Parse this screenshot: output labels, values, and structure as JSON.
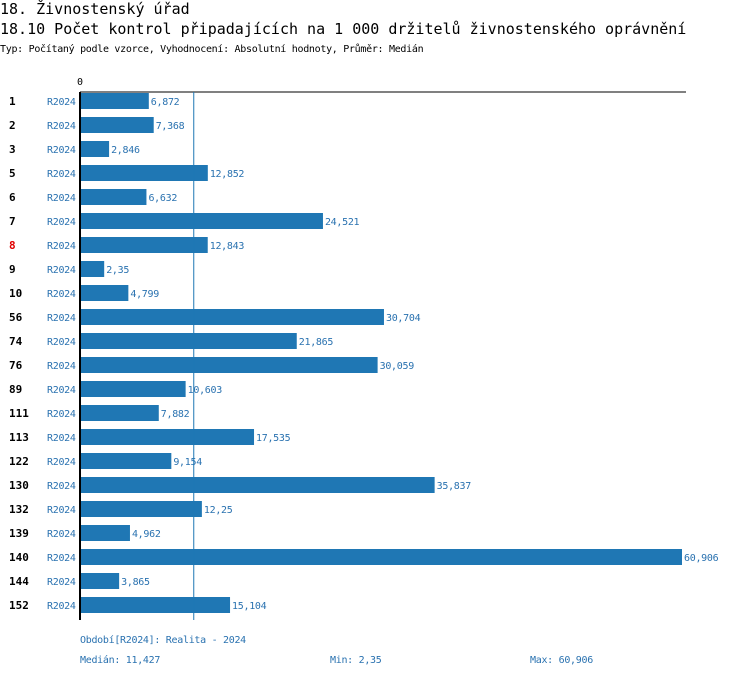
{
  "header": {
    "section": "18. Živnostenský úřad",
    "title": "18.10 Počet kontrol připadajících na 1 000 držitelů živnostenského oprávnění",
    "type_line": "Typ: Počítaný podle vzorce, Vyhodnocení: Absolutní hodnoty, Průměr: Medián"
  },
  "chart_data": {
    "type": "bar",
    "orientation": "horizontal",
    "axis_zero_label": "0",
    "series_label": "R2024",
    "categories": [
      "1",
      "2",
      "3",
      "5",
      "6",
      "7",
      "8",
      "9",
      "10",
      "56",
      "74",
      "76",
      "89",
      "111",
      "113",
      "122",
      "130",
      "132",
      "139",
      "140",
      "144",
      "152"
    ],
    "highlighted": "8",
    "values": [
      6.872,
      7.368,
      2.846,
      12.852,
      6.632,
      24.521,
      12.843,
      2.35,
      4.799,
      30.704,
      21.865,
      30.059,
      10.603,
      7.882,
      17.535,
      9.154,
      35.837,
      12.25,
      4.962,
      60.906,
      3.865,
      15.104
    ],
    "value_labels": [
      "6,872",
      "7,368",
      "2,846",
      "12,852",
      "6,632",
      "24,521",
      "12,843",
      "2,35",
      "4,799",
      "30,704",
      "21,865",
      "30,059",
      "10,603",
      "7,882",
      "17,535",
      "9,154",
      "35,837",
      "12,25",
      "4,962",
      "60,906",
      "3,865",
      "15,104"
    ],
    "median": 11.427,
    "xlim": [
      0,
      61.5
    ],
    "colors": {
      "bar": "#1f77b4",
      "text": "#2a72b0",
      "highlight": "#e00000"
    }
  },
  "footer": {
    "period": "Období[R2024]: Realita - 2024",
    "median": "Medián: 11,427",
    "min": "Min: 2,35",
    "max": "Max: 60,906"
  }
}
